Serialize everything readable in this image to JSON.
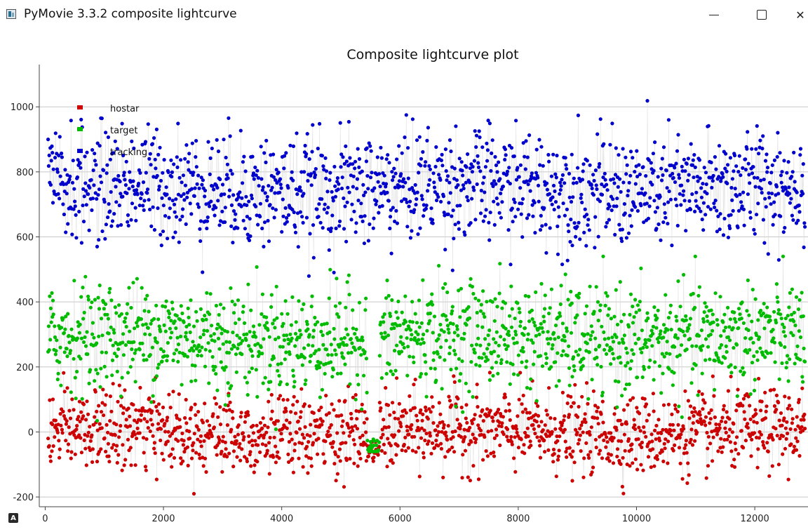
{
  "window": {
    "title": "PyMovie 3.3.2 composite lightcurve",
    "minimize_glyph": "",
    "maximize_glyph": "",
    "close_glyph": "✕"
  },
  "autoscale_button": {
    "label": "A"
  },
  "chart_data": {
    "type": "scatter",
    "title": "Composite lightcurve plot",
    "xlabel": "",
    "ylabel": "",
    "xlim": [
      -100,
      12900
    ],
    "ylim": [
      -230,
      1130
    ],
    "x_ticks": [
      0,
      2000,
      4000,
      6000,
      8000,
      10000,
      12000
    ],
    "y_ticks": [
      -200,
      0,
      200,
      400,
      600,
      800,
      1000
    ],
    "grid": "horizontal",
    "legend_position": "top-left",
    "connecting_lines": true,
    "series": [
      {
        "name": "hostar",
        "color": "#cc0000",
        "n_points": 12800,
        "x_range": [
          50,
          12850
        ],
        "summary": {
          "baseline_level": 0,
          "scatter_sd": 60,
          "min": -190,
          "max": 200
        },
        "event": {
          "x_start": 5450,
          "x_end": 5650,
          "level": -60
        }
      },
      {
        "name": "target",
        "color": "#00bb00",
        "n_points": 12800,
        "x_range": [
          50,
          12850
        ],
        "summary": {
          "baseline_level": 290,
          "scatter_sd": 80,
          "min": -60,
          "max": 540
        },
        "event": {
          "x_start": 5450,
          "x_end": 5650,
          "level": -50
        }
      },
      {
        "name": "tracking",
        "color": "#0000cc",
        "n_points": 12800,
        "x_range": [
          50,
          12850
        ],
        "summary": {
          "baseline_level": 750,
          "scatter_sd": 85,
          "min": 390,
          "max": 1070
        },
        "event": null
      }
    ]
  }
}
